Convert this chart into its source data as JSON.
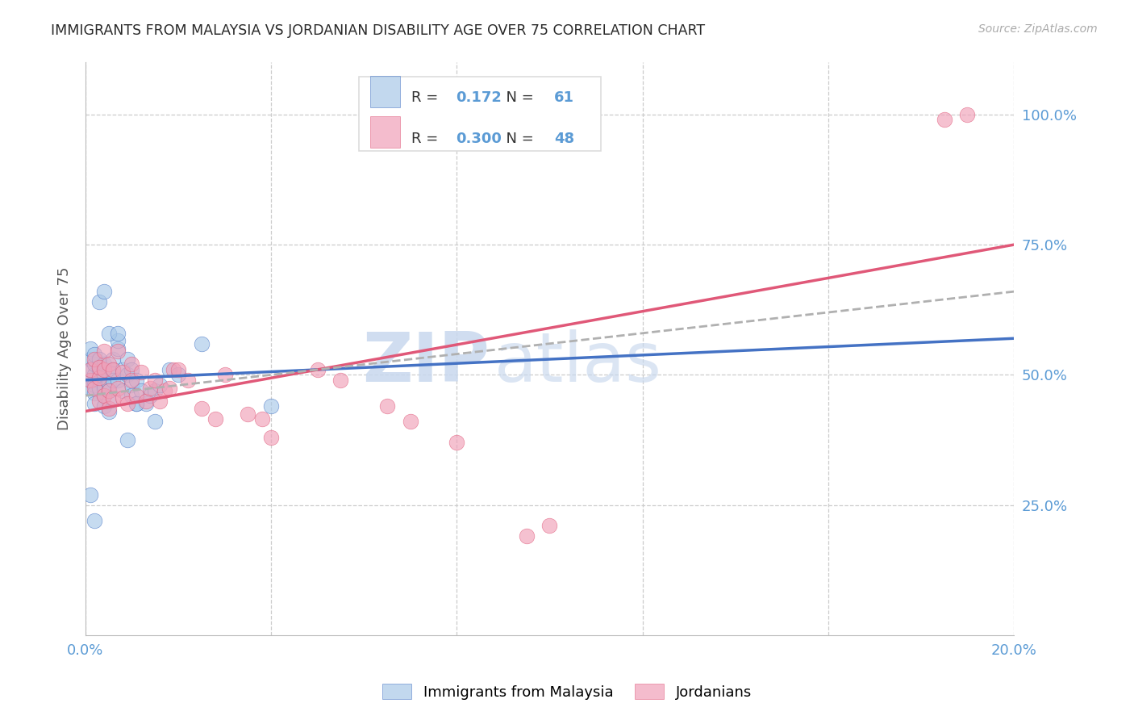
{
  "title": "IMMIGRANTS FROM MALAYSIA VS JORDANIAN DISABILITY AGE OVER 75 CORRELATION CHART",
  "source": "Source: ZipAtlas.com",
  "ylabel": "Disability Age Over 75",
  "watermark_line1": "ZIP",
  "watermark_line2": "atlas",
  "xmin": 0.0,
  "xmax": 0.2,
  "ymin": 0.0,
  "ymax": 1.1,
  "yticks": [
    0.25,
    0.5,
    0.75,
    1.0
  ],
  "ytick_labels": [
    "25.0%",
    "50.0%",
    "75.0%",
    "100.0%"
  ],
  "xticks": [
    0.0,
    0.04,
    0.08,
    0.12,
    0.16,
    0.2
  ],
  "xtick_labels": [
    "0.0%",
    "",
    "",
    "",
    "",
    "20.0%"
  ],
  "legend_r_blue": "0.172",
  "legend_n_blue": "61",
  "legend_r_pink": "0.300",
  "legend_n_pink": "48",
  "blue_color": "#a8c8e8",
  "pink_color": "#f0a0b8",
  "blue_line_color": "#4472c4",
  "pink_line_color": "#e05878",
  "dash_line_color": "#b0b0b0",
  "title_color": "#333333",
  "axis_label_color": "#555555",
  "tick_label_color": "#5b9bd5",
  "grid_color": "#cccccc",
  "watermark_color": "#c8d8ee",
  "blue_trend_x0": 0.0,
  "blue_trend_y0": 0.49,
  "blue_trend_x1": 0.2,
  "blue_trend_y1": 0.57,
  "pink_trend_x0": 0.0,
  "pink_trend_y0": 0.43,
  "pink_trend_x1": 0.2,
  "pink_trend_y1": 0.75,
  "dash_trend_x0": 0.0,
  "dash_trend_y0": 0.46,
  "dash_trend_x1": 0.2,
  "dash_trend_y1": 0.66,
  "blue_x": [
    0.001,
    0.001,
    0.001,
    0.001,
    0.001,
    0.002,
    0.002,
    0.002,
    0.002,
    0.002,
    0.002,
    0.003,
    0.003,
    0.003,
    0.003,
    0.003,
    0.003,
    0.004,
    0.004,
    0.004,
    0.004,
    0.004,
    0.004,
    0.005,
    0.005,
    0.005,
    0.005,
    0.005,
    0.006,
    0.006,
    0.006,
    0.007,
    0.007,
    0.007,
    0.008,
    0.008,
    0.009,
    0.009,
    0.01,
    0.01,
    0.01,
    0.011,
    0.011,
    0.012,
    0.013,
    0.014,
    0.015,
    0.016,
    0.018,
    0.02,
    0.001,
    0.002,
    0.003,
    0.004,
    0.005,
    0.007,
    0.009,
    0.011,
    0.015,
    0.025,
    0.04
  ],
  "blue_y": [
    0.49,
    0.51,
    0.53,
    0.55,
    0.475,
    0.5,
    0.52,
    0.54,
    0.48,
    0.465,
    0.445,
    0.49,
    0.51,
    0.475,
    0.495,
    0.515,
    0.53,
    0.48,
    0.5,
    0.52,
    0.46,
    0.475,
    0.44,
    0.485,
    0.505,
    0.47,
    0.45,
    0.43,
    0.51,
    0.49,
    0.53,
    0.55,
    0.565,
    0.49,
    0.51,
    0.47,
    0.53,
    0.5,
    0.48,
    0.46,
    0.51,
    0.49,
    0.445,
    0.47,
    0.445,
    0.46,
    0.47,
    0.48,
    0.51,
    0.5,
    0.27,
    0.22,
    0.64,
    0.66,
    0.58,
    0.58,
    0.375,
    0.445,
    0.41,
    0.56,
    0.44
  ],
  "pink_x": [
    0.001,
    0.001,
    0.002,
    0.002,
    0.003,
    0.003,
    0.003,
    0.004,
    0.004,
    0.004,
    0.005,
    0.005,
    0.005,
    0.006,
    0.006,
    0.007,
    0.007,
    0.008,
    0.008,
    0.009,
    0.01,
    0.01,
    0.011,
    0.012,
    0.013,
    0.014,
    0.015,
    0.016,
    0.017,
    0.018,
    0.019,
    0.02,
    0.022,
    0.025,
    0.028,
    0.03,
    0.035,
    0.038,
    0.04,
    0.05,
    0.055,
    0.065,
    0.07,
    0.08,
    0.095,
    0.1,
    0.185,
    0.19
  ],
  "pink_y": [
    0.49,
    0.51,
    0.475,
    0.53,
    0.45,
    0.495,
    0.515,
    0.46,
    0.51,
    0.545,
    0.435,
    0.52,
    0.47,
    0.455,
    0.51,
    0.475,
    0.545,
    0.455,
    0.505,
    0.445,
    0.49,
    0.52,
    0.46,
    0.505,
    0.45,
    0.475,
    0.49,
    0.45,
    0.47,
    0.475,
    0.51,
    0.51,
    0.49,
    0.435,
    0.415,
    0.5,
    0.425,
    0.415,
    0.38,
    0.51,
    0.49,
    0.44,
    0.41,
    0.37,
    0.19,
    0.21,
    0.99,
    1.0
  ]
}
